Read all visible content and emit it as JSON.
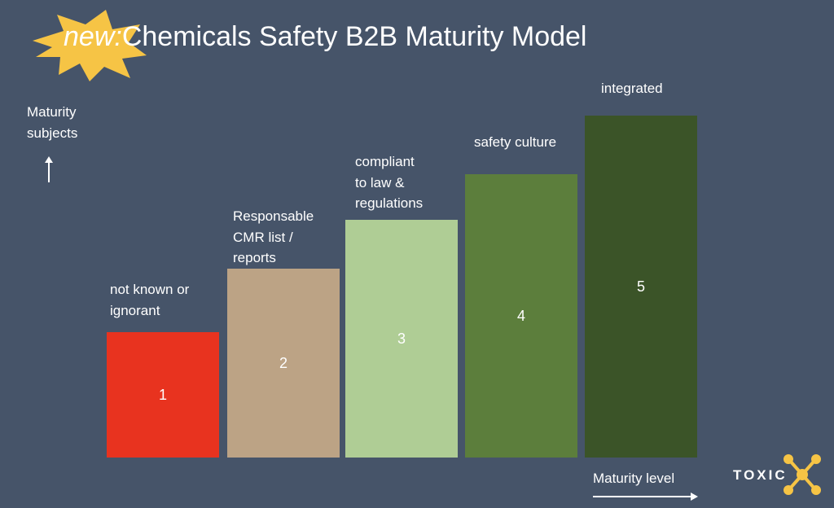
{
  "header": {
    "highlight": "new:",
    "title": "Chemicals Safety B2B Maturity Model"
  },
  "y_axis_label": [
    "Maturity",
    "subjects"
  ],
  "x_axis_label": "Maturity level",
  "levels": [
    {
      "number": "1",
      "description": [
        "not known or",
        "ignorant"
      ],
      "color": "#e8331f"
    },
    {
      "number": "2",
      "description": [
        "Responsable",
        "CMR list /",
        "reports"
      ],
      "color": "#bca385"
    },
    {
      "number": "3",
      "description": [
        "compliant",
        "to law &",
        "regulations"
      ],
      "color": "#afcd95"
    },
    {
      "number": "4",
      "description": [
        "safety culture"
      ],
      "color": "#5c7e3c"
    },
    {
      "number": "5",
      "description": [
        "integrated"
      ],
      "color": "#3b5428"
    }
  ],
  "logo": "TOXIC"
}
